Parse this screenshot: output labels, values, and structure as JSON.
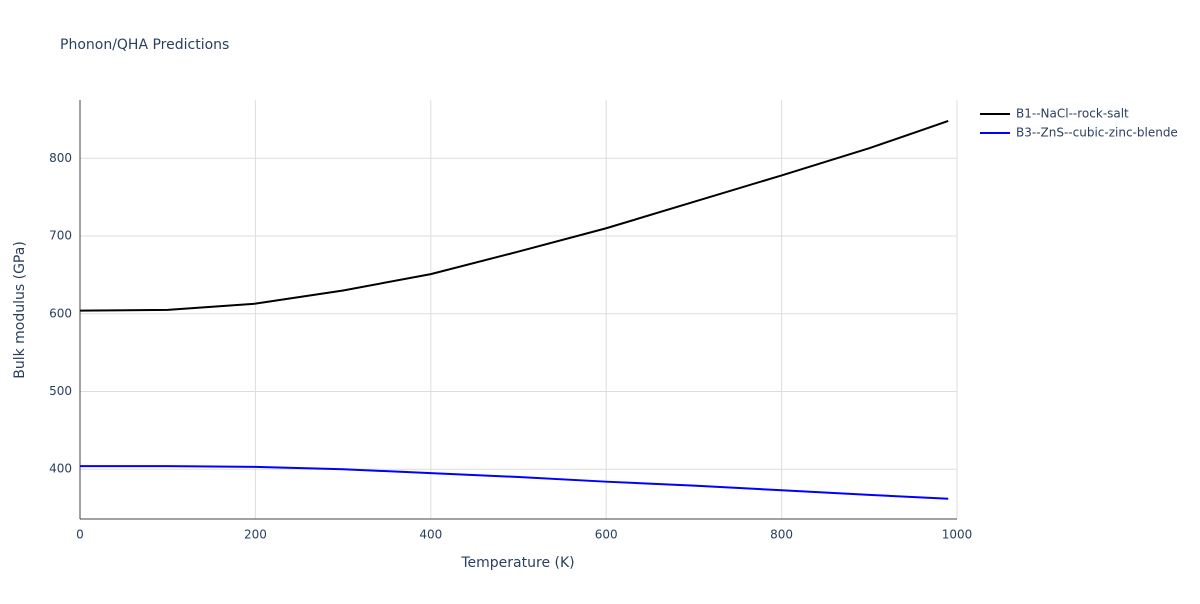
{
  "chart_data": {
    "type": "line",
    "title": "Phonon/QHA Predictions",
    "x_label": "Temperature (K)",
    "y_label": "Bulk modulus (GPa)",
    "x": [
      0,
      100,
      200,
      300,
      400,
      500,
      600,
      700,
      800,
      900,
      990
    ],
    "series": [
      {
        "name": "B1--NaCl--rock-salt",
        "color": "#000000",
        "values": [
          604,
          605,
          613,
          630,
          651,
          680,
          710,
          744,
          778,
          813,
          848
        ]
      },
      {
        "name": "B3--ZnS--cubic-zinc-blende",
        "color": "#0000ff",
        "values": [
          404,
          404,
          403,
          400,
          395,
          390,
          384,
          379,
          373,
          367,
          362
        ]
      }
    ],
    "xlim": [
      0,
      1000
    ],
    "xticks": [
      0,
      200,
      400,
      600,
      800,
      1000
    ],
    "ylim": [
      336,
      875
    ],
    "yticks": [
      400,
      500,
      600,
      700,
      800
    ],
    "grid": true,
    "legend": "right"
  }
}
